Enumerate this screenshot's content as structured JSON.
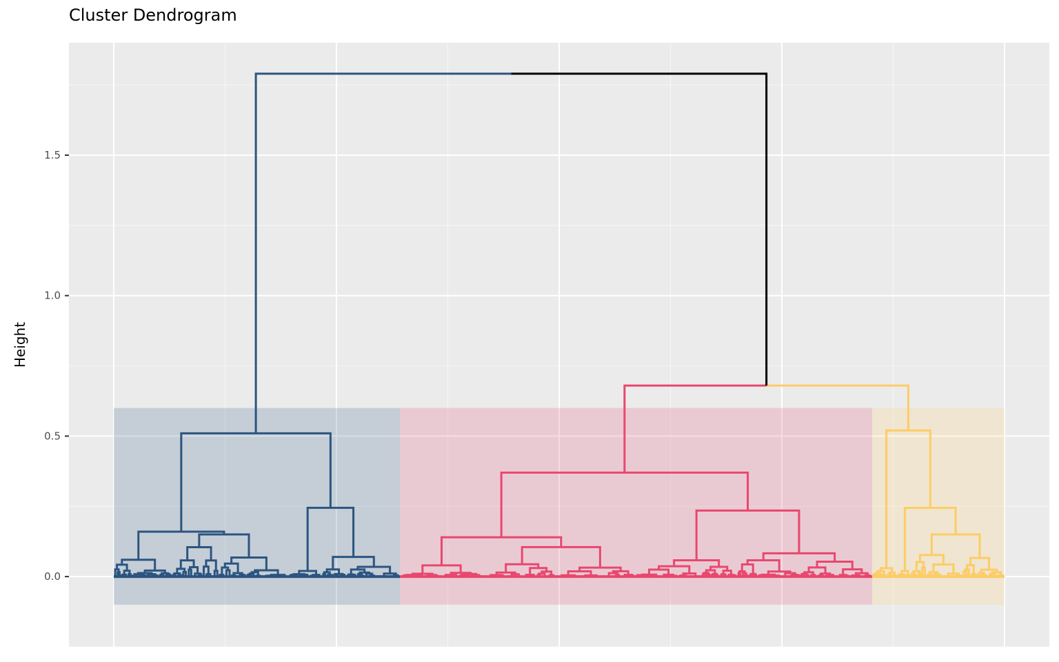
{
  "chart_data": {
    "type": "dendrogram",
    "title": "Cluster Dendrogram",
    "xlabel": "",
    "ylabel": "Height",
    "ylim": [
      -0.25,
      1.9
    ],
    "y_ticks": [
      0.0,
      0.5,
      1.0,
      1.5
    ],
    "y_tick_labels": [
      "0.0",
      "0.5",
      "1.0",
      "1.5"
    ],
    "grid": true,
    "k": 3,
    "root_height": 1.79,
    "colors": {
      "panel_background": "#ebebeb",
      "grid": "#ffffff",
      "root_branch": "#000000"
    },
    "clusters": [
      {
        "color": "#2b5580",
        "height": 0.51
      },
      {
        "color": "#e8476f",
        "height": 0.37
      },
      {
        "color": "#fdcc65",
        "height": 0.52
      }
    ]
  }
}
